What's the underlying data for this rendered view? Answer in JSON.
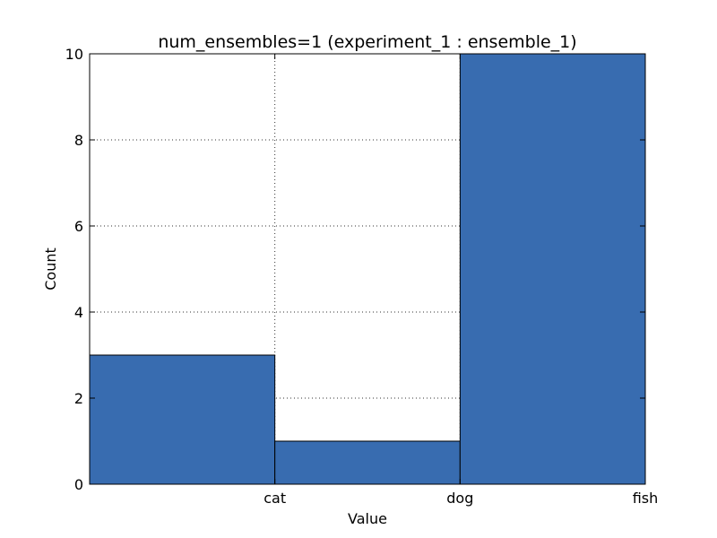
{
  "chart_data": {
    "type": "bar",
    "title": "num_ensembles=1 (experiment_1 : ensemble_1)",
    "xlabel": "Value",
    "ylabel": "Count",
    "categories": [
      "cat",
      "dog",
      "fish"
    ],
    "values": [
      3,
      1,
      10
    ],
    "ylim": [
      0,
      10
    ],
    "yticks": [
      "0",
      "2",
      "4",
      "6",
      "8",
      "10"
    ],
    "bar_color": "#386cb0",
    "grid": true,
    "legend": "none"
  }
}
